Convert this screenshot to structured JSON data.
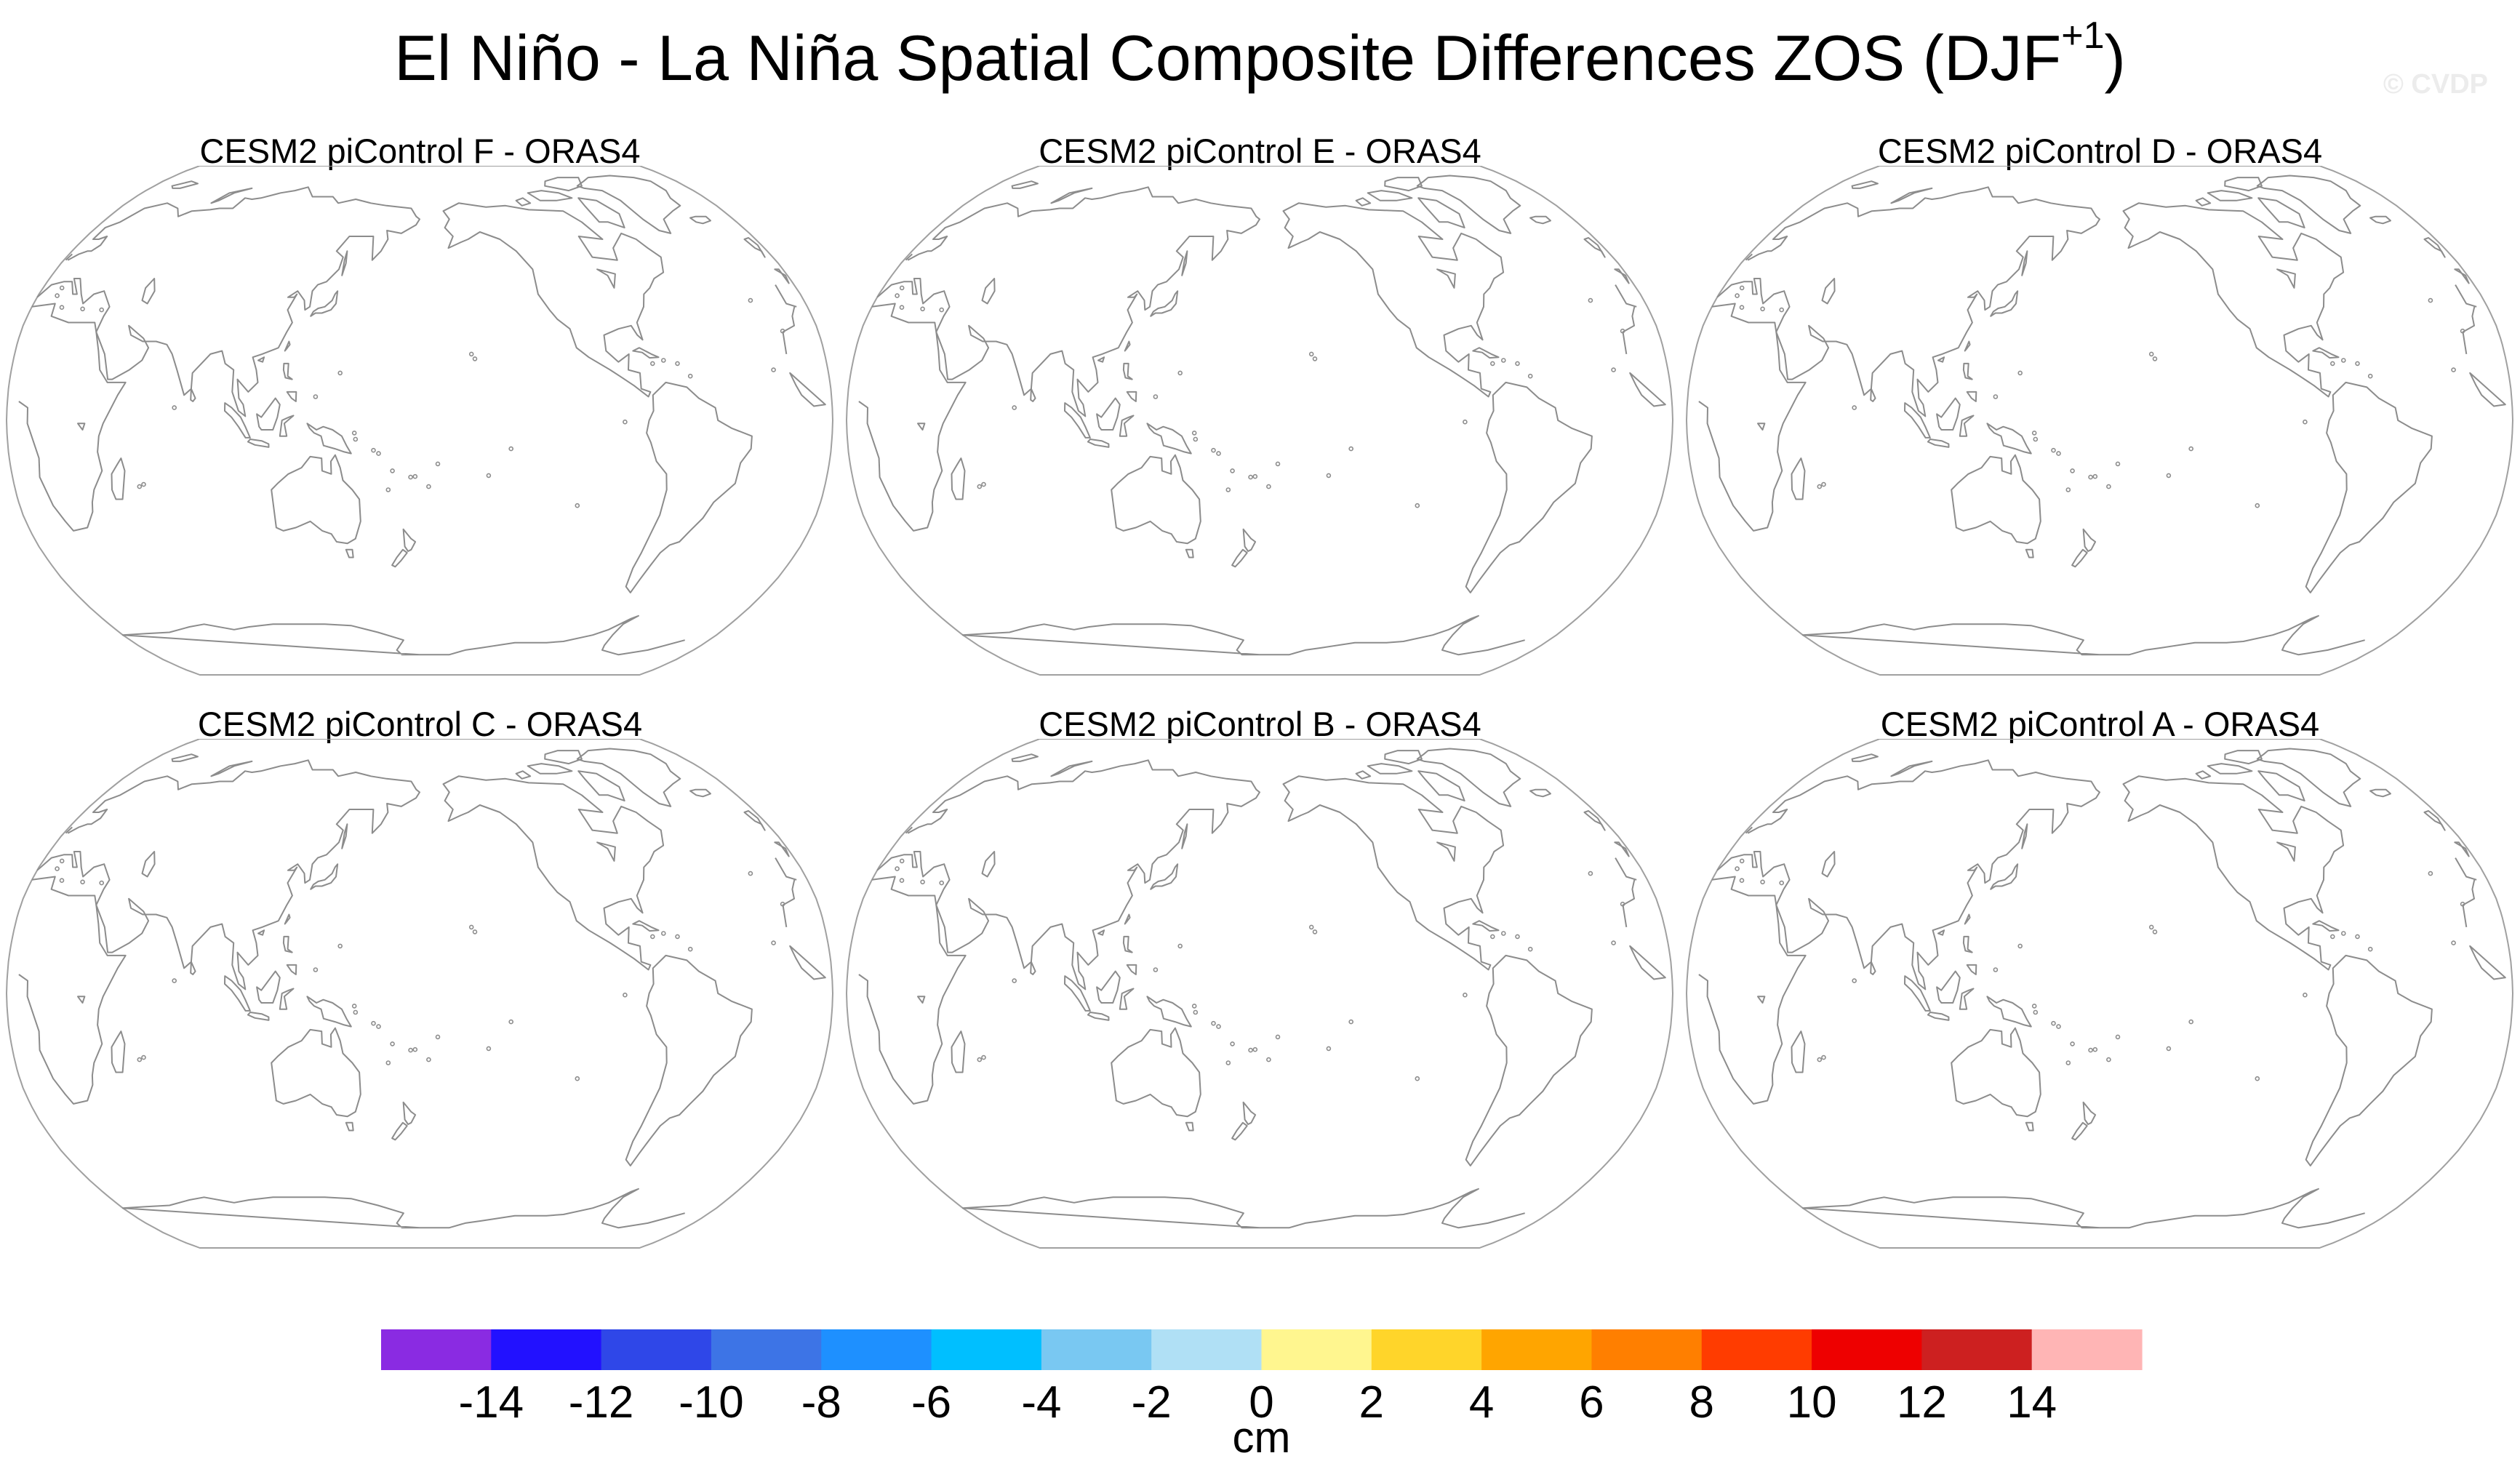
{
  "title": {
    "main": "El Niño - La Niña Spatial Composite Differences ZOS (DJF",
    "sup": "+1",
    "close": ")"
  },
  "watermark": "© CVDP",
  "panels": [
    {
      "title": "CESM2 piControl F - ORAS4"
    },
    {
      "title": "CESM2 piControl E - ORAS4"
    },
    {
      "title": "CESM2 piControl D - ORAS4"
    },
    {
      "title": "CESM2 piControl C - ORAS4"
    },
    {
      "title": "CESM2 piControl B - ORAS4"
    },
    {
      "title": "CESM2 piControl A - ORAS4"
    }
  ],
  "map": {
    "projection": "Robinson",
    "central_longitude": 180,
    "coastline_color": "#8c8c8c",
    "border_color": "#a0a0a0",
    "field": "empty"
  },
  "colorbar": {
    "units": "cm",
    "labels": [
      "-14",
      "-12",
      "-10",
      "-8",
      "-6",
      "-4",
      "-2",
      "0",
      "2",
      "4",
      "6",
      "8",
      "10",
      "12",
      "14"
    ],
    "colors": [
      "#8a2be2",
      "#2211ff",
      "#2f47e8",
      "#3d74e6",
      "#1e90ff",
      "#00bfff",
      "#79c8f2",
      "#b0e0f5",
      "#fff68f",
      "#ffd52a",
      "#ffa500",
      "#ff7f00",
      "#ff3c00",
      "#ee0000",
      "#cd2020",
      "#ffb5b5"
    ]
  }
}
